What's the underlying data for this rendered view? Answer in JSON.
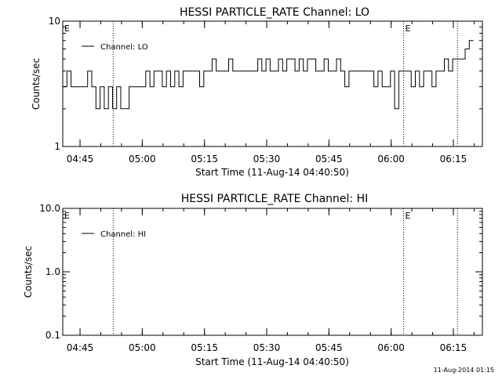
{
  "footer_timestamp": "11-Aug-2014 01:15",
  "chart_data": [
    {
      "type": "line",
      "title": "HESSI PARTICLE_RATE Channel: LO",
      "xlabel": "Start Time (11-Aug-14 04:40:50)",
      "ylabel": "Counts/sec",
      "y_scale": "log",
      "ylim": [
        1,
        10
      ],
      "y_ticks": [
        "1",
        "10"
      ],
      "x_tick_labels": [
        "04:45",
        "05:00",
        "05:15",
        "05:30",
        "05:45",
        "06:00",
        "06:15"
      ],
      "xlim": [
        "04:40:50",
        "06:22:00"
      ],
      "legend": {
        "position": "top-left",
        "entries": [
          "Channel: LO"
        ]
      },
      "event_markers": [
        {
          "label": "E",
          "time": "04:40:50"
        },
        {
          "label": "E",
          "time": "06:03:00"
        }
      ],
      "dotted_lines": [
        "04:53:00",
        "06:03:00",
        "06:16:00"
      ],
      "series": [
        {
          "name": "Channel: LO",
          "x_minutes_from_start": [
            0,
            1,
            2,
            3,
            4,
            5,
            6,
            7,
            8,
            9,
            10,
            11,
            12,
            13,
            14,
            15,
            16,
            17,
            18,
            19,
            20,
            21,
            22,
            23,
            24,
            25,
            26,
            27,
            28,
            29,
            30,
            31,
            32,
            33,
            34,
            35,
            36,
            37,
            38,
            39,
            40,
            41,
            42,
            43,
            44,
            45,
            46,
            47,
            48,
            49,
            50,
            51,
            52,
            53,
            54,
            55,
            56,
            57,
            58,
            59,
            60,
            61,
            62,
            63,
            64,
            65,
            66,
            67,
            68,
            69,
            70,
            71,
            72,
            73,
            74,
            75,
            76,
            77,
            78,
            79,
            80,
            81,
            82,
            83,
            84,
            85,
            86,
            87,
            88,
            89,
            90,
            91,
            92,
            93,
            94,
            95,
            96,
            97,
            98
          ],
          "values": [
            3,
            4,
            3,
            3,
            3,
            3,
            4,
            3,
            2,
            3,
            2,
            3,
            2,
            3,
            2,
            2,
            3,
            3,
            3,
            3,
            4,
            3,
            4,
            4,
            3,
            4,
            3,
            4,
            3,
            4,
            4,
            4,
            4,
            3,
            4,
            4,
            5,
            4,
            4,
            4,
            5,
            4,
            4,
            4,
            4,
            4,
            4,
            5,
            4,
            5,
            4,
            4,
            5,
            4,
            5,
            5,
            4,
            5,
            4,
            5,
            5,
            4,
            4,
            5,
            4,
            4,
            5,
            4,
            3,
            4,
            4,
            4,
            4,
            4,
            4,
            3,
            4,
            3,
            3,
            4,
            2,
            4,
            4,
            4,
            3,
            4,
            3,
            4,
            4,
            3,
            4,
            4,
            5,
            4,
            5,
            5,
            5,
            6,
            7
          ]
        }
      ]
    },
    {
      "type": "line",
      "title": "HESSI PARTICLE_RATE Channel: HI",
      "xlabel": "Start Time (11-Aug-14 04:40:50)",
      "ylabel": "Counts/sec",
      "y_scale": "log",
      "ylim": [
        0.1,
        10
      ],
      "y_ticks": [
        "10.0",
        "1.0",
        "0.1"
      ],
      "x_tick_labels": [
        "04:45",
        "05:00",
        "05:15",
        "05:30",
        "05:45",
        "06:00",
        "06:15"
      ],
      "xlim": [
        "04:40:50",
        "06:22:00"
      ],
      "legend": {
        "position": "top-left",
        "entries": [
          "Channel: HI"
        ]
      },
      "event_markers": [
        {
          "label": "E",
          "time": "04:40:50"
        },
        {
          "label": "E",
          "time": "06:03:00"
        }
      ],
      "dotted_lines": [
        "04:53:00",
        "06:03:00",
        "06:16:00"
      ],
      "series": [
        {
          "name": "Channel: HI",
          "values": []
        }
      ]
    }
  ]
}
